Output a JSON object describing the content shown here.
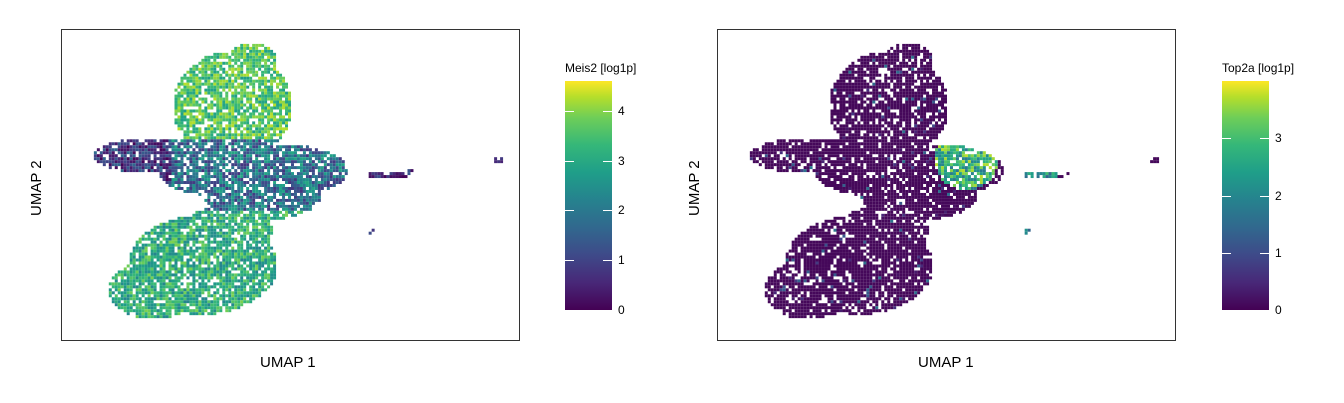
{
  "chart_data": [
    {
      "type": "scatter",
      "title": "",
      "xlabel": "UMAP 1",
      "ylabel": "UMAP 2",
      "colorbar": {
        "title": "Meis2 [log1p]",
        "colormap": "viridis",
        "range": [
          0,
          4.6
        ],
        "ticks": [
          0,
          1,
          2,
          3,
          4
        ],
        "tick_labels": [
          "0",
          "1",
          "2",
          "3",
          "4"
        ]
      },
      "grid": false,
      "legend": "right"
    },
    {
      "type": "scatter",
      "title": "",
      "xlabel": "UMAP 1",
      "ylabel": "UMAP 2",
      "colorbar": {
        "title": "Top2a [log1p]",
        "colormap": "viridis",
        "range": [
          0,
          4.0
        ],
        "ticks": [
          0,
          1,
          2,
          3
        ],
        "tick_labels": [
          "0",
          "1",
          "2",
          "3"
        ]
      },
      "grid": false,
      "legend": "right"
    }
  ],
  "colors": {
    "viridis_low": "#440154",
    "viridis_mid": "#21918c",
    "viridis_high": "#fde725",
    "frame": "#333333"
  }
}
